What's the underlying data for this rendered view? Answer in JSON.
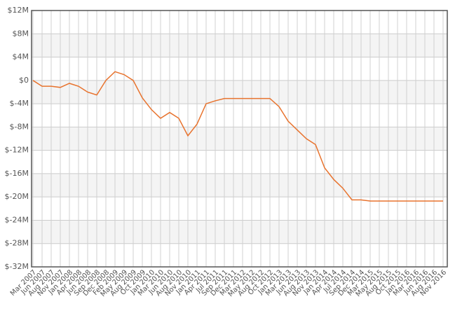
{
  "chart_data": {
    "type": "line",
    "categories": [
      "Mar 2007",
      "Jun 2007",
      "Aug 2007",
      "Nov 2007",
      "Jan 2008",
      "Apr 2008",
      "Jun 2008",
      "Sep 2008",
      "Dec 2008",
      "Feb 2009",
      "May 2009",
      "Aug 2009",
      "Oct 2009",
      "Jan 2010",
      "Mar 2010",
      "Jun 2010",
      "Aug 2010",
      "Nov 2010",
      "Jan 2011",
      "Apr 2011",
      "Jul 2011",
      "Sep 2011",
      "Dec 2011",
      "Mar 2012",
      "May 2012",
      "Aug 2012",
      "Oct 2012",
      "Jan 2013",
      "Mar 2013",
      "Jun 2013",
      "Aug 2013",
      "Nov 2013",
      "Jan 2014",
      "Apr 2014",
      "Jul 2014",
      "Sep 2014",
      "Dec 2014",
      "Mar 2015",
      "May 2015",
      "Aug 2015",
      "Oct 2015",
      "Jan 2016",
      "Mar 2016",
      "Jun 2016",
      "Aug 2016",
      "Nov 2016"
    ],
    "values": [
      0,
      -1,
      -1,
      -1.2,
      -0.5,
      -1,
      -2,
      -2.5,
      0,
      1.5,
      1,
      0,
      -3,
      -5,
      -6.5,
      -5.5,
      -6.5,
      -9.5,
      -7.5,
      -4,
      -3.5,
      -3.1,
      -3.1,
      -3.1,
      -3.1,
      -3.1,
      -3.1,
      -4.5,
      -7,
      -8.5,
      -10,
      -11,
      -15,
      -17,
      -18.5,
      -20.5,
      -20.5,
      -20.7,
      -20.7,
      -20.7,
      -20.7,
      -20.7,
      -20.7,
      -20.7,
      -20.7,
      -20.7
    ],
    "color": "#e8732e",
    "ylim": [
      -32,
      12
    ],
    "yticks": [
      {
        "value": -32,
        "label": "$-32M"
      },
      {
        "value": -28,
        "label": "$-28M"
      },
      {
        "value": -24,
        "label": "$-24M"
      },
      {
        "value": -20,
        "label": "$-20M"
      },
      {
        "value": -16,
        "label": "$-16M"
      },
      {
        "value": -12,
        "label": "$-12M"
      },
      {
        "value": -8,
        "label": "$-8M"
      },
      {
        "value": -4,
        "label": "$-4M"
      },
      {
        "value": 0,
        "label": "$0"
      },
      {
        "value": 4,
        "label": "$4M"
      },
      {
        "value": 8,
        "label": "$8M"
      },
      {
        "value": 12,
        "label": "$12M"
      }
    ],
    "grid": true
  }
}
